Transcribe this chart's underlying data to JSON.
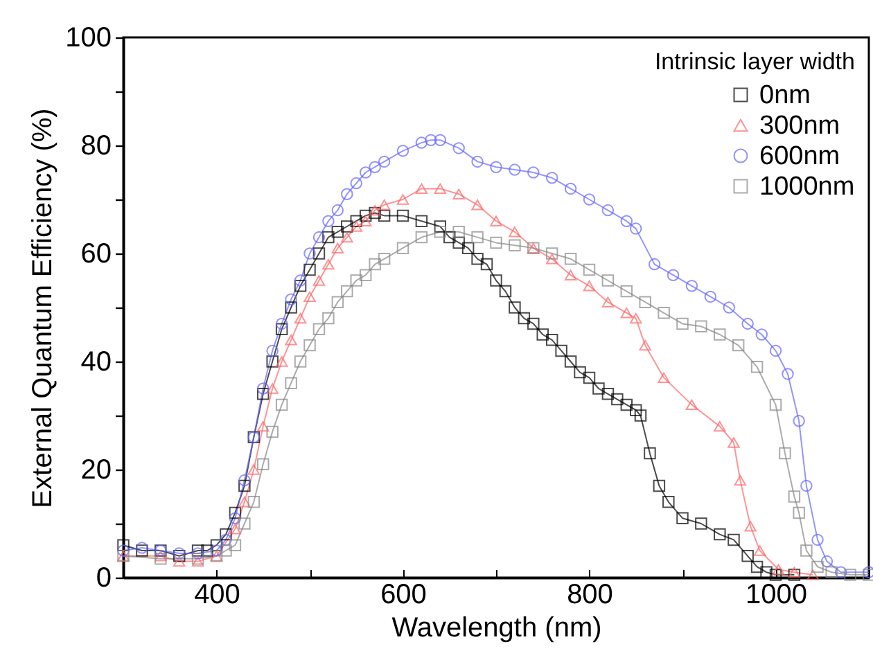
{
  "chart_data": {
    "type": "line",
    "xlabel": "Wavelength (nm)",
    "ylabel": "External Quantum Efficiency (%)",
    "legend_title": "Intrinsic layer width",
    "legend": "top right",
    "grid": false,
    "line_style": "solid",
    "xlim": [
      300,
      1100
    ],
    "ylim": [
      0,
      100
    ],
    "xticks": [
      {
        "value": 300,
        "label": null
      },
      400,
      {
        "value": 500,
        "label": null
      },
      600,
      {
        "value": 700,
        "label": null
      },
      800,
      {
        "value": 900,
        "label": null
      },
      1000,
      {
        "value": 1100,
        "label": null
      }
    ],
    "yticks": [
      0,
      {
        "value": 10,
        "label": null
      },
      20,
      {
        "value": 30,
        "label": null
      },
      40,
      {
        "value": 50,
        "label": null
      },
      60,
      {
        "value": 70,
        "label": null
      },
      80,
      {
        "value": 90,
        "label": null
      },
      100
    ],
    "series": [
      {
        "name": "0nm",
        "color": "#000000",
        "marker": "square",
        "x": [
          300,
          320,
          340,
          360,
          380,
          390,
          400,
          410,
          420,
          430,
          440,
          450,
          460,
          470,
          480,
          490,
          500,
          510,
          520,
          530,
          540,
          550,
          560,
          570,
          580,
          600,
          620,
          640,
          650,
          660,
          670,
          680,
          690,
          700,
          710,
          720,
          730,
          740,
          750,
          760,
          770,
          780,
          790,
          800,
          810,
          820,
          830,
          840,
          850,
          855,
          865,
          875,
          885,
          900,
          920,
          940,
          955,
          970,
          980,
          990,
          1000,
          1020
        ],
        "values": [
          6,
          5,
          5,
          4,
          5,
          5,
          6,
          8,
          12,
          17,
          26,
          34,
          40,
          46,
          50,
          54,
          57,
          60,
          63,
          64,
          65,
          66,
          67,
          67.5,
          67,
          67,
          66,
          65,
          63,
          62,
          61,
          59,
          58,
          55,
          53,
          50,
          48,
          47,
          45,
          44,
          42,
          40,
          38,
          37,
          35,
          34,
          33,
          32,
          31,
          30,
          23,
          17,
          14,
          11,
          10,
          8,
          7,
          4,
          2,
          1,
          0.5,
          0.5
        ]
      },
      {
        "name": "300nm",
        "color": "#ff6666",
        "marker": "triangle",
        "x": [
          300,
          340,
          360,
          380,
          400,
          420,
          430,
          440,
          450,
          460,
          470,
          480,
          490,
          500,
          510,
          520,
          530,
          540,
          550,
          560,
          570,
          580,
          600,
          620,
          640,
          660,
          680,
          700,
          720,
          740,
          760,
          780,
          800,
          820,
          840,
          850,
          860,
          880,
          910,
          940,
          955,
          962,
          973,
          983,
          1003,
          1020,
          1040
        ],
        "values": [
          4,
          4,
          3,
          3,
          4,
          9,
          14,
          20,
          28,
          35,
          40,
          44,
          48,
          52,
          55,
          58,
          61,
          63,
          65,
          66,
          68,
          69,
          70,
          72,
          72,
          71,
          69,
          66,
          64,
          61,
          59,
          56,
          54,
          51,
          49,
          48,
          43,
          37,
          32,
          28,
          25,
          18,
          9.5,
          5,
          1.5,
          1,
          0.5
        ]
      },
      {
        "name": "600nm",
        "color": "#6666ff",
        "marker": "circle",
        "x": [
          300,
          320,
          340,
          360,
          380,
          400,
          410,
          420,
          430,
          440,
          450,
          460,
          470,
          480,
          490,
          500,
          510,
          520,
          530,
          540,
          550,
          560,
          570,
          580,
          600,
          620,
          630,
          640,
          660,
          680,
          700,
          720,
          740,
          760,
          780,
          800,
          820,
          840,
          850,
          870,
          890,
          910,
          930,
          950,
          970,
          985,
          1000,
          1013,
          1025,
          1033,
          1045,
          1055,
          1070,
          1100
        ],
        "values": [
          5,
          5.5,
          5,
          4.5,
          4.5,
          5,
          7,
          11,
          18,
          26,
          35,
          42,
          47,
          51.5,
          55,
          60,
          63,
          66,
          68,
          71,
          73,
          75,
          76,
          77,
          79,
          80.5,
          81,
          81,
          79.5,
          77,
          76,
          75.5,
          75,
          74,
          72,
          70,
          68,
          66,
          64.6,
          58,
          56,
          54,
          52,
          50,
          47,
          45,
          42,
          37.7,
          29,
          17,
          7,
          3,
          1,
          1
        ]
      },
      {
        "name": "1000nm",
        "color": "#888888",
        "marker": "square",
        "x": [
          300,
          340,
          380,
          400,
          410,
          420,
          430,
          440,
          450,
          460,
          470,
          480,
          490,
          500,
          510,
          520,
          530,
          540,
          550,
          560,
          570,
          580,
          600,
          620,
          640,
          660,
          680,
          700,
          720,
          740,
          760,
          780,
          800,
          820,
          840,
          860,
          880,
          900,
          920,
          940,
          960,
          980,
          1000,
          1010,
          1020,
          1025,
          1033,
          1045,
          1060,
          1080,
          1100
        ],
        "values": [
          4,
          3.5,
          3.5,
          4,
          5,
          6,
          10,
          14,
          21,
          27,
          32,
          36,
          40,
          43,
          46,
          48,
          51,
          53,
          55,
          56,
          58,
          59,
          61,
          63,
          64,
          64,
          63,
          62,
          61.5,
          61,
          60,
          59,
          57,
          55,
          53,
          51,
          49,
          47,
          46.5,
          45,
          43,
          39,
          32,
          23,
          15,
          12,
          5,
          2,
          1,
          0.5,
          0.5
        ]
      }
    ]
  }
}
